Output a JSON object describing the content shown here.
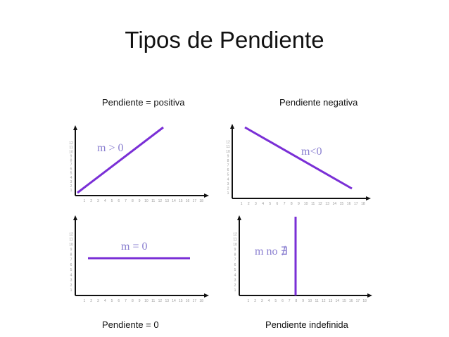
{
  "title": "Tipos de Pendiente",
  "accent_color": "#7a2fd6",
  "panels": [
    {
      "label": "Pendiente = positiva",
      "annotation": "m > 0",
      "kind": "positive"
    },
    {
      "label": "Pendiente negativa",
      "annotation": "m<0",
      "kind": "negative"
    },
    {
      "label": "Pendiente = 0",
      "annotation": "m = 0",
      "kind": "zero"
    },
    {
      "label": "Pendiente indefinida",
      "annotation": "m no ∄",
      "kind": "undefined"
    }
  ],
  "ticks": [
    "1",
    "2",
    "3",
    "4",
    "5",
    "6",
    "7",
    "8",
    "9",
    "10",
    "11",
    "12",
    "13",
    "14",
    "15",
    "16",
    "17",
    "18"
  ]
}
